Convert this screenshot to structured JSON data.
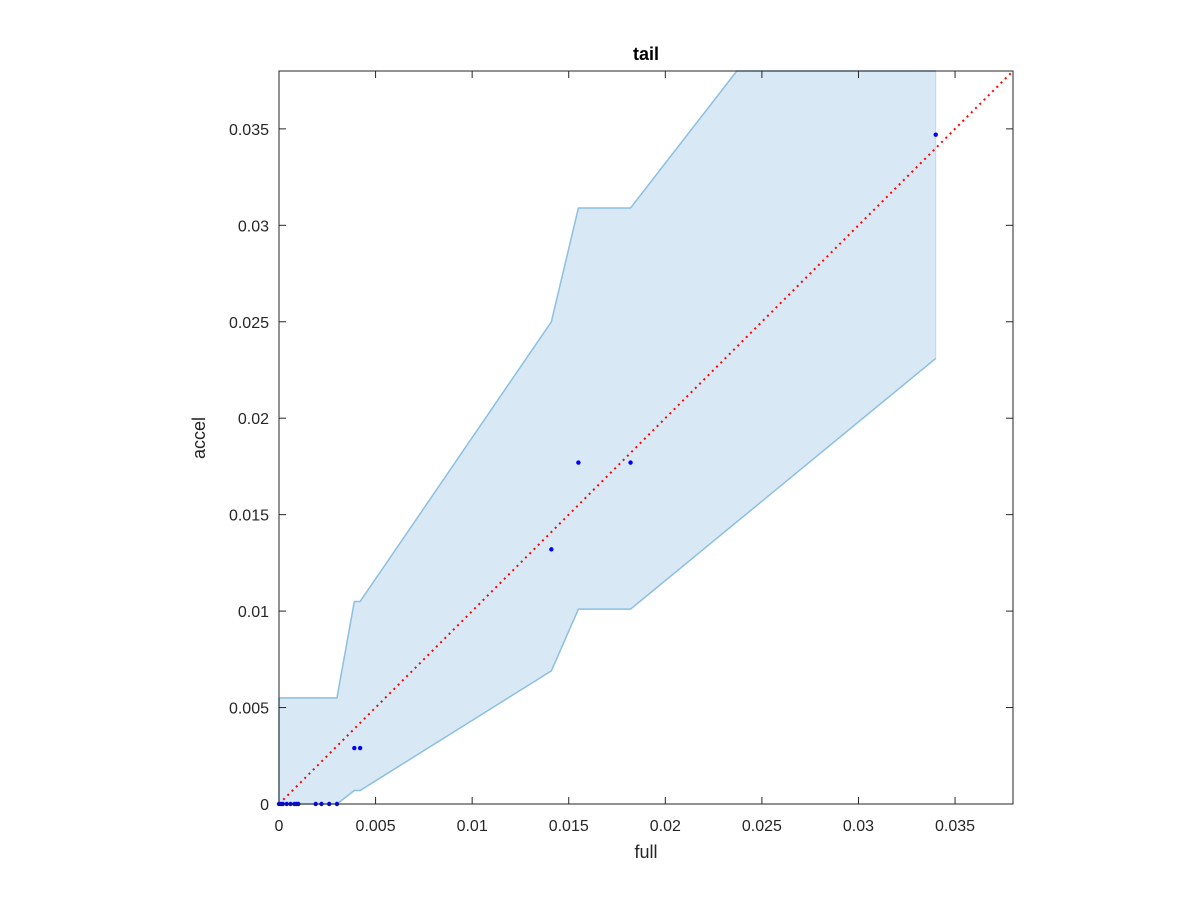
{
  "chart_data": {
    "type": "scatter",
    "title": "tail",
    "xlabel": "full",
    "ylabel": "accel",
    "xlim": [
      0,
      0.038
    ],
    "ylim": [
      0,
      0.038
    ],
    "xticks": [
      0,
      0.005,
      0.01,
      0.015,
      0.02,
      0.025,
      0.03,
      0.035
    ],
    "xtick_labels": [
      "0",
      "0.005",
      "0.01",
      "0.015",
      "0.02",
      "0.025",
      "0.03",
      "0.035"
    ],
    "yticks": [
      0,
      0.005,
      0.01,
      0.015,
      0.02,
      0.025,
      0.03,
      0.035
    ],
    "ytick_labels": [
      "0",
      "0.005",
      "0.01",
      "0.015",
      "0.02",
      "0.025",
      "0.03",
      "0.035"
    ],
    "grid": false,
    "box": true,
    "band": {
      "color": "#d9e8f5",
      "edge_color": "#8cc0e0",
      "upper": [
        [
          0,
          0.0055
        ],
        [
          0.003,
          0.0055
        ],
        [
          0.0039,
          0.0105
        ],
        [
          0.0042,
          0.0105
        ],
        [
          0.0141,
          0.025
        ],
        [
          0.0155,
          0.0309
        ],
        [
          0.0182,
          0.0309
        ],
        [
          0.0237,
          0.038
        ],
        [
          0.034,
          0.038
        ]
      ],
      "lower": [
        [
          0,
          0
        ],
        [
          0.003,
          0
        ],
        [
          0.0039,
          0.0007
        ],
        [
          0.0042,
          0.0007
        ],
        [
          0.0141,
          0.0069
        ],
        [
          0.0155,
          0.0101
        ],
        [
          0.0182,
          0.0101
        ],
        [
          0.034,
          0.0231
        ]
      ]
    },
    "reference_line": {
      "color": "#ff0000",
      "style": "dotted",
      "from": [
        0,
        0
      ],
      "to": [
        0.038,
        0.038
      ]
    },
    "series": [
      {
        "color": "#0000ff",
        "points": [
          [
            0,
            0
          ],
          [
            0.0001,
            0
          ],
          [
            0.0002,
            0
          ],
          [
            0.0004,
            0
          ],
          [
            0.0006,
            0
          ],
          [
            0.0008,
            0
          ],
          [
            0.0009,
            0
          ],
          [
            0.001,
            0
          ],
          [
            0.0019,
            0
          ],
          [
            0.0022,
            0
          ],
          [
            0.0026,
            0
          ],
          [
            0.003,
            0
          ],
          [
            0.0039,
            0.0029
          ],
          [
            0.0042,
            0.0029
          ],
          [
            0.0141,
            0.0132
          ],
          [
            0.0155,
            0.0177
          ],
          [
            0.0182,
            0.0177
          ],
          [
            0.034,
            0.0347
          ]
        ]
      }
    ]
  }
}
